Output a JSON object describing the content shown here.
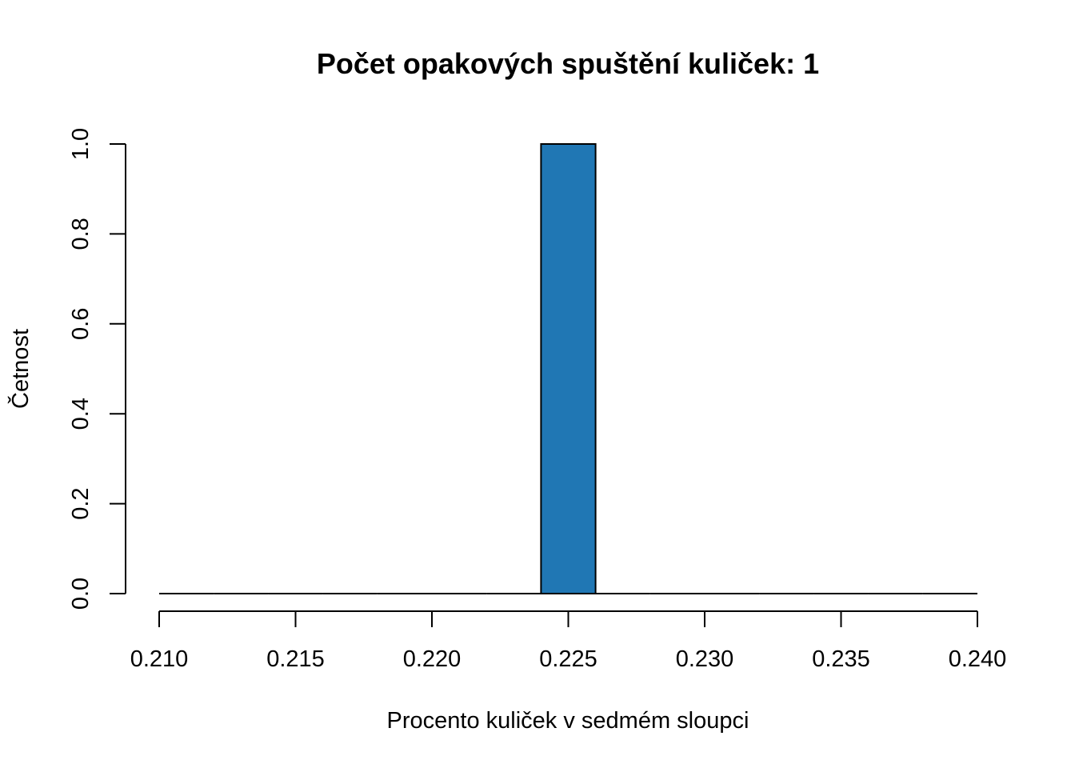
{
  "chart_data": {
    "type": "bar",
    "title": "Počet opakových spuštění kuliček: 1",
    "xlabel": "Procento kuliček v sedmém sloupci",
    "ylabel": "Četnost",
    "xlim": [
      0.21,
      0.24
    ],
    "ylim": [
      0,
      1
    ],
    "x_ticks": [
      "0.210",
      "0.215",
      "0.220",
      "0.225",
      "0.230",
      "0.235",
      "0.240"
    ],
    "y_ticks": [
      "0.0",
      "0.2",
      "0.4",
      "0.6",
      "0.8",
      "1.0"
    ],
    "bin_edges": [
      0.21,
      0.212,
      0.214,
      0.216,
      0.218,
      0.22,
      0.222,
      0.224,
      0.226,
      0.228,
      0.23,
      0.232,
      0.234,
      0.236,
      0.238,
      0.24
    ],
    "counts": [
      0,
      0,
      0,
      0,
      0,
      0,
      0,
      1,
      0,
      0,
      0,
      0,
      0,
      0,
      0
    ],
    "bar_color": "#2077b4",
    "grid": false,
    "legend": "none"
  }
}
